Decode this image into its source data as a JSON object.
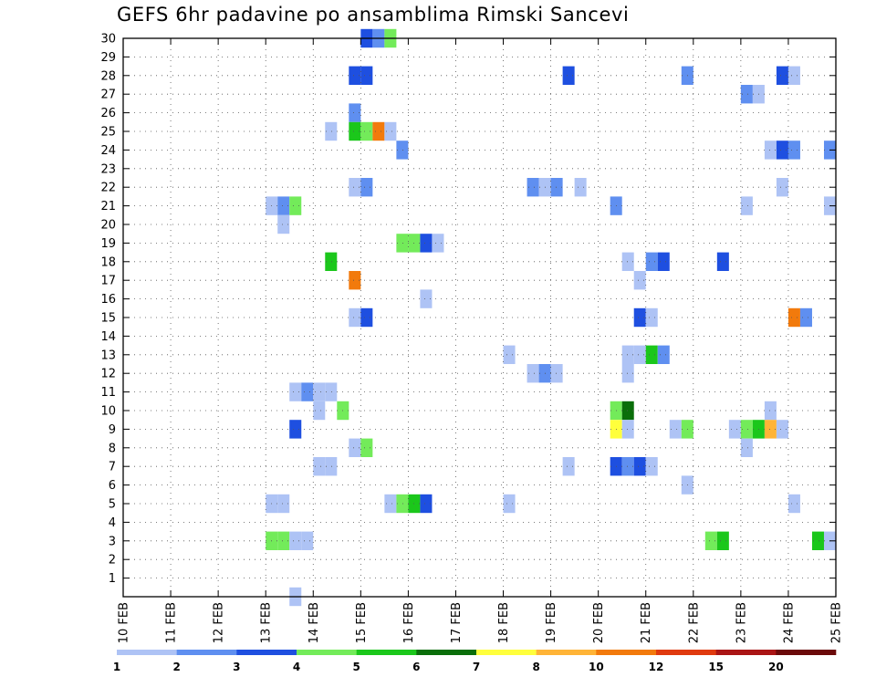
{
  "chart_data": {
    "type": "heatmap",
    "title": "GEFS 6hr padavine po ansamblima Rimski Sancevi",
    "x_tick_labels": [
      "10 FEB",
      "11 FEB",
      "12 FEB",
      "13 FEB",
      "14 FEB",
      "15 FEB",
      "16 FEB",
      "17 FEB",
      "18 FEB",
      "19 FEB",
      "20 FEB",
      "21 FEB",
      "22 FEB",
      "23 FEB",
      "24 FEB",
      "25 FEB"
    ],
    "x_range_days": [
      10,
      25
    ],
    "y_tick_labels": [
      "1",
      "2",
      "3",
      "4",
      "5",
      "6",
      "7",
      "8",
      "9",
      "10",
      "11",
      "12",
      "13",
      "14",
      "15",
      "16",
      "17",
      "18",
      "19",
      "20",
      "21",
      "22",
      "23",
      "24",
      "25",
      "26",
      "27",
      "28",
      "29",
      "30"
    ],
    "y_range": [
      0,
      30
    ],
    "grid": true,
    "colorbar": {
      "labels": [
        "1",
        "2",
        "3",
        "4",
        "5",
        "6",
        "7",
        "8",
        "10",
        "12",
        "15",
        "20"
      ],
      "colors": [
        "#aec3f5",
        "#5f8ff0",
        "#1e4fe0",
        "#73eb5a",
        "#1bc71b",
        "#0a6e0a",
        "#ffff3c",
        "#ffb437",
        "#f27a0c",
        "#e03a0f",
        "#aa1515",
        "#6b0a0a"
      ]
    },
    "cells": [
      {
        "member": 30,
        "time": 15.125,
        "cls": 3
      },
      {
        "member": 30,
        "time": 15.375,
        "cls": 2
      },
      {
        "member": 30,
        "time": 15.625,
        "cls": 4
      },
      {
        "member": 28,
        "time": 14.875,
        "cls": 3
      },
      {
        "member": 28,
        "time": 15.125,
        "cls": 3
      },
      {
        "member": 28,
        "time": 19.375,
        "cls": 3
      },
      {
        "member": 28,
        "time": 21.875,
        "cls": 2
      },
      {
        "member": 28,
        "time": 23.875,
        "cls": 3
      },
      {
        "member": 28,
        "time": 24.125,
        "cls": 1
      },
      {
        "member": 27,
        "time": 23.125,
        "cls": 2
      },
      {
        "member": 27,
        "time": 23.375,
        "cls": 1
      },
      {
        "member": 26,
        "time": 14.875,
        "cls": 2
      },
      {
        "member": 25,
        "time": 14.375,
        "cls": 1
      },
      {
        "member": 25,
        "time": 14.875,
        "cls": 5
      },
      {
        "member": 25,
        "time": 15.125,
        "cls": 4
      },
      {
        "member": 25,
        "time": 15.375,
        "cls": 9
      },
      {
        "member": 25,
        "time": 15.625,
        "cls": 1
      },
      {
        "member": 24,
        "time": 15.875,
        "cls": 2
      },
      {
        "member": 24,
        "time": 23.625,
        "cls": 1
      },
      {
        "member": 24,
        "time": 23.875,
        "cls": 3
      },
      {
        "member": 24,
        "time": 24.125,
        "cls": 2
      },
      {
        "member": 24,
        "time": 24.875,
        "cls": 2
      },
      {
        "member": 22,
        "time": 14.875,
        "cls": 1
      },
      {
        "member": 22,
        "time": 15.125,
        "cls": 2
      },
      {
        "member": 22,
        "time": 18.625,
        "cls": 2
      },
      {
        "member": 22,
        "time": 18.875,
        "cls": 1
      },
      {
        "member": 22,
        "time": 19.125,
        "cls": 2
      },
      {
        "member": 22,
        "time": 19.625,
        "cls": 1
      },
      {
        "member": 22,
        "time": 23.875,
        "cls": 1
      },
      {
        "member": 21,
        "time": 13.125,
        "cls": 1
      },
      {
        "member": 21,
        "time": 13.375,
        "cls": 2
      },
      {
        "member": 21,
        "time": 13.625,
        "cls": 4
      },
      {
        "member": 21,
        "time": 20.375,
        "cls": 2
      },
      {
        "member": 21,
        "time": 23.125,
        "cls": 1
      },
      {
        "member": 21,
        "time": 24.875,
        "cls": 1
      },
      {
        "member": 20,
        "time": 13.375,
        "cls": 1
      },
      {
        "member": 19,
        "time": 15.875,
        "cls": 4
      },
      {
        "member": 19,
        "time": 16.125,
        "cls": 4
      },
      {
        "member": 19,
        "time": 16.375,
        "cls": 3
      },
      {
        "member": 19,
        "time": 16.625,
        "cls": 1
      },
      {
        "member": 18,
        "time": 14.375,
        "cls": 5
      },
      {
        "member": 18,
        "time": 20.625,
        "cls": 1
      },
      {
        "member": 18,
        "time": 21.125,
        "cls": 2
      },
      {
        "member": 18,
        "time": 21.375,
        "cls": 3
      },
      {
        "member": 18,
        "time": 22.625,
        "cls": 3
      },
      {
        "member": 17,
        "time": 14.875,
        "cls": 9
      },
      {
        "member": 17,
        "time": 20.875,
        "cls": 1
      },
      {
        "member": 16,
        "time": 16.375,
        "cls": 1
      },
      {
        "member": 15,
        "time": 14.875,
        "cls": 1
      },
      {
        "member": 15,
        "time": 15.125,
        "cls": 3
      },
      {
        "member": 15,
        "time": 20.875,
        "cls": 3
      },
      {
        "member": 15,
        "time": 21.125,
        "cls": 1
      },
      {
        "member": 15,
        "time": 24.125,
        "cls": 9
      },
      {
        "member": 15,
        "time": 24.375,
        "cls": 2
      },
      {
        "member": 13,
        "time": 18.125,
        "cls": 1
      },
      {
        "member": 13,
        "time": 20.625,
        "cls": 1
      },
      {
        "member": 13,
        "time": 20.875,
        "cls": 1
      },
      {
        "member": 13,
        "time": 21.125,
        "cls": 5
      },
      {
        "member": 13,
        "time": 21.375,
        "cls": 2
      },
      {
        "member": 12,
        "time": 18.625,
        "cls": 1
      },
      {
        "member": 12,
        "time": 18.875,
        "cls": 2
      },
      {
        "member": 12,
        "time": 19.125,
        "cls": 1
      },
      {
        "member": 12,
        "time": 20.625,
        "cls": 1
      },
      {
        "member": 11,
        "time": 13.625,
        "cls": 1
      },
      {
        "member": 11,
        "time": 13.875,
        "cls": 2
      },
      {
        "member": 11,
        "time": 14.125,
        "cls": 1
      },
      {
        "member": 11,
        "time": 14.375,
        "cls": 1
      },
      {
        "member": 10,
        "time": 14.125,
        "cls": 1
      },
      {
        "member": 10,
        "time": 14.625,
        "cls": 4
      },
      {
        "member": 10,
        "time": 20.375,
        "cls": 4
      },
      {
        "member": 10,
        "time": 20.625,
        "cls": 6
      },
      {
        "member": 10,
        "time": 23.625,
        "cls": 1
      },
      {
        "member": 9,
        "time": 13.625,
        "cls": 3
      },
      {
        "member": 9,
        "time": 20.375,
        "cls": 7
      },
      {
        "member": 9,
        "time": 20.625,
        "cls": 1
      },
      {
        "member": 9,
        "time": 21.625,
        "cls": 1
      },
      {
        "member": 9,
        "time": 21.875,
        "cls": 4
      },
      {
        "member": 9,
        "time": 22.875,
        "cls": 1
      },
      {
        "member": 9,
        "time": 23.125,
        "cls": 4
      },
      {
        "member": 9,
        "time": 23.375,
        "cls": 5
      },
      {
        "member": 9,
        "time": 23.625,
        "cls": 8
      },
      {
        "member": 9,
        "time": 23.875,
        "cls": 1
      },
      {
        "member": 8,
        "time": 14.875,
        "cls": 1
      },
      {
        "member": 8,
        "time": 15.125,
        "cls": 4
      },
      {
        "member": 8,
        "time": 23.125,
        "cls": 1
      },
      {
        "member": 7,
        "time": 14.125,
        "cls": 1
      },
      {
        "member": 7,
        "time": 14.375,
        "cls": 1
      },
      {
        "member": 7,
        "time": 19.375,
        "cls": 1
      },
      {
        "member": 7,
        "time": 20.375,
        "cls": 3
      },
      {
        "member": 7,
        "time": 20.625,
        "cls": 2
      },
      {
        "member": 7,
        "time": 20.875,
        "cls": 3
      },
      {
        "member": 7,
        "time": 21.125,
        "cls": 1
      },
      {
        "member": 6,
        "time": 21.875,
        "cls": 1
      },
      {
        "member": 5,
        "time": 13.125,
        "cls": 1
      },
      {
        "member": 5,
        "time": 13.375,
        "cls": 1
      },
      {
        "member": 5,
        "time": 15.625,
        "cls": 1
      },
      {
        "member": 5,
        "time": 15.875,
        "cls": 4
      },
      {
        "member": 5,
        "time": 16.125,
        "cls": 5
      },
      {
        "member": 5,
        "time": 16.375,
        "cls": 3
      },
      {
        "member": 5,
        "time": 18.125,
        "cls": 1
      },
      {
        "member": 5,
        "time": 24.125,
        "cls": 1
      },
      {
        "member": 3,
        "time": 13.125,
        "cls": 4
      },
      {
        "member": 3,
        "time": 13.375,
        "cls": 4
      },
      {
        "member": 3,
        "time": 13.625,
        "cls": 1
      },
      {
        "member": 3,
        "time": 13.875,
        "cls": 1
      },
      {
        "member": 3,
        "time": 22.375,
        "cls": 4
      },
      {
        "member": 3,
        "time": 22.625,
        "cls": 5
      },
      {
        "member": 3,
        "time": 24.625,
        "cls": 5
      },
      {
        "member": 3,
        "time": 24.875,
        "cls": 1
      },
      {
        "member": 0,
        "time": 13.625,
        "cls": 1
      }
    ]
  }
}
